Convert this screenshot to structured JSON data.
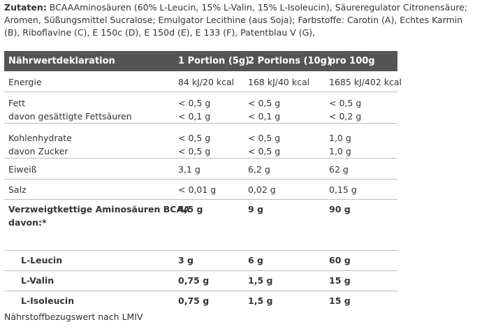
{
  "ingredients": {
    "label": "Zutaten:",
    "text": "BCAAAminosäuren (60% L-Leucin, 15% L-Valin, 15% L-Isoleucin), Säureregulator Citronensäure; Aromen, Süßungsmittel Sucralose; Emulgator Lecithine (aus Soja); Farbstoffe: Carotin (A), Echtes Karmin (B), Riboflavine (C), E 150c (D), E 150d (E), E 133 (F), Patentblau V (G),"
  },
  "table": {
    "headers": [
      "Nährwertdeklaration",
      "1 Portion (5g)",
      "2 Portions (10g)",
      "pro 100g"
    ],
    "energy": [
      "Energie",
      "84 kJ/20 kcal",
      "168 kJ/40 kcal",
      "1685 kJ/402 kcal"
    ],
    "fat": {
      "label": "Fett",
      "sublabel": "davon gesättigte Fettsäuren",
      "p1": "< 0,5 g",
      "p1s": "< 0,1 g",
      "p2": "< 0,5 g",
      "p2s": "< 0,1 g",
      "p100": "< 0,5 g",
      "p100s": "< 0,2 g"
    },
    "carbs": {
      "label": "Kohlenhydrate",
      "sublabel": "davon Zucker",
      "p1": "< 0,5 g",
      "p1s": "< 0,5 g",
      "p2": "< 0,5 g",
      "p2s": "< 0,5 g",
      "p100": "1,0 g",
      "p100s": "1,0 g"
    },
    "protein": [
      "Eiweiß",
      "3,1 g",
      "6,2 g",
      "62 g"
    ],
    "salt": [
      "Salz",
      "< 0,01 g",
      "0,02 g",
      "0,15 g"
    ],
    "bcaa": {
      "label1": "Verzweigtkettige Aminosäuren BCAA",
      "label2": "davon:*",
      "p1": "4,5 g",
      "p2": "9 g",
      "p100": "90 g"
    },
    "leucin": [
      "L-Leucin",
      "3 g",
      "6 g",
      "60 g"
    ],
    "valin": [
      "L-Valin",
      "0,75 g",
      "1,5 g",
      "15 g"
    ],
    "isoleucin": [
      "L-Isoleucin",
      "0,75 g",
      "1,5 g",
      "15 g"
    ]
  },
  "footnote": "Nährstoffbezugswert nach LMIV"
}
